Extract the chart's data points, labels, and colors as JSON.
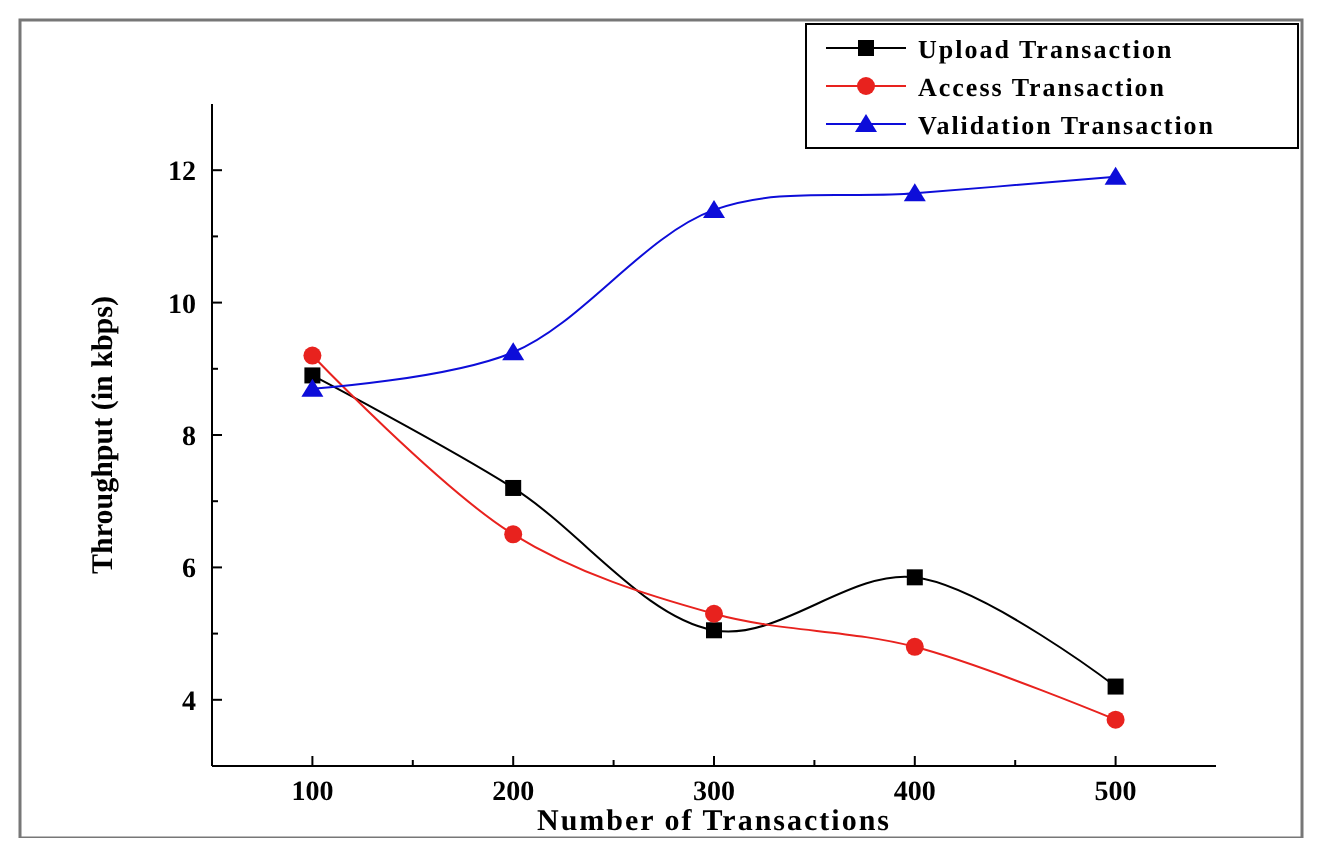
{
  "chart_data": {
    "type": "line",
    "xlabel": "Number of Transactions",
    "ylabel": "Throughput (in kbps)",
    "x": [
      100,
      200,
      300,
      400,
      500
    ],
    "xlim": [
      50,
      550
    ],
    "xticks": [
      100,
      200,
      300,
      400,
      500
    ],
    "ylim": [
      3,
      13
    ],
    "yticks": [
      4,
      6,
      8,
      10,
      12
    ],
    "legend": "top right",
    "grid": false,
    "series": [
      {
        "name": "Upload Transaction",
        "color": "#000000",
        "marker": "square",
        "values": [
          8.9,
          7.2,
          5.05,
          5.85,
          4.2
        ]
      },
      {
        "name": "Access Transaction",
        "color": "#e8221e",
        "marker": "circle",
        "values": [
          9.2,
          6.5,
          5.3,
          4.8,
          3.7
        ]
      },
      {
        "name": "Validation Transaction",
        "color": "#0d0dd9",
        "marker": "triangle",
        "values": [
          8.7,
          9.25,
          11.4,
          11.65,
          11.9
        ]
      }
    ]
  }
}
